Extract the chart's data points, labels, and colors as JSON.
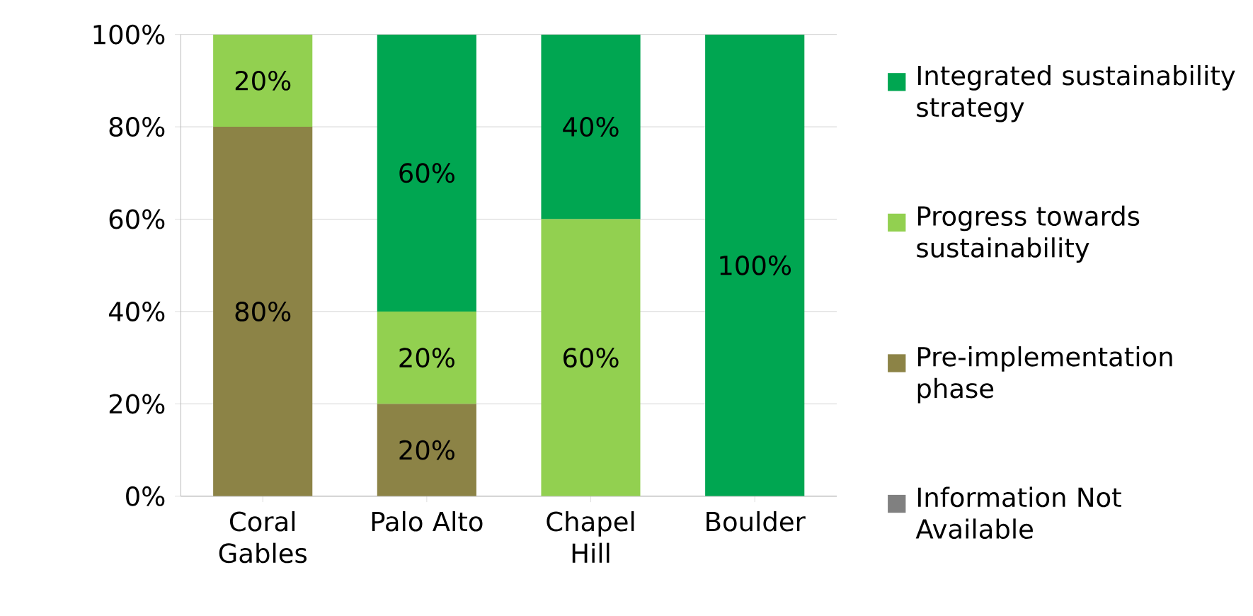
{
  "chart_data": {
    "type": "bar",
    "stacked": true,
    "categories": [
      "Coral Gables",
      "Palo Alto",
      "Chapel Hill",
      "Boulder"
    ],
    "series": [
      {
        "name": "Information Not Available",
        "color": "#808080",
        "values": [
          0,
          0,
          0,
          0
        ],
        "value_labels": [
          null,
          null,
          null,
          null
        ]
      },
      {
        "name": "Pre-implementation phase",
        "color": "#8c8346",
        "values": [
          80,
          20,
          0,
          0
        ],
        "value_labels": [
          "80%",
          "20%",
          null,
          null
        ]
      },
      {
        "name": "Progress towards sustainability",
        "color": "#92d050",
        "values": [
          20,
          20,
          60,
          0
        ],
        "value_labels": [
          "20%",
          "20%",
          "60%",
          null
        ]
      },
      {
        "name": "Integrated sustainability strategy",
        "color": "#00a651",
        "values": [
          0,
          60,
          40,
          100
        ],
        "value_labels": [
          null,
          "60%",
          "40%",
          "100%"
        ]
      }
    ],
    "ylim": [
      0,
      100
    ],
    "yticks": [
      {
        "value": 0,
        "label": "0%"
      },
      {
        "value": 20,
        "label": "20%"
      },
      {
        "value": 40,
        "label": "40%"
      },
      {
        "value": 60,
        "label": "60%"
      },
      {
        "value": 80,
        "label": "80%"
      },
      {
        "value": 100,
        "label": "100%"
      }
    ],
    "grid": "y",
    "legend": "right"
  }
}
